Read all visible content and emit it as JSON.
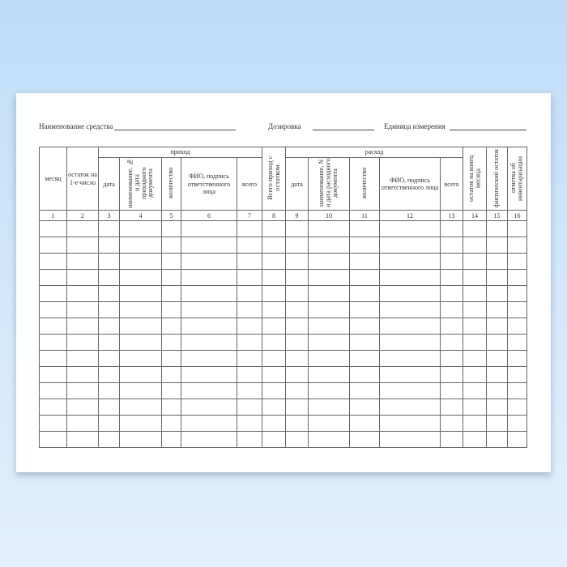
{
  "form": {
    "fields": {
      "name_label": "Наименование средства",
      "dosage_label": "Дозировка",
      "unit_label": "Единица измерения"
    },
    "table": {
      "headers": {
        "month": "месяц",
        "balance_start": "остаток на 1-е число",
        "income_group": "приход",
        "income_date": "дата",
        "income_doc": "наименование, № и дата приходного документа",
        "income_qty": "количество",
        "income_person": "ФИО, подпись ответственного лица",
        "income_total": "всего",
        "total_with_balance": "Всего приход с остатком",
        "expense_group": "расход",
        "expense_date": "дата",
        "expense_doc": "наименование, N и дата расходного документа",
        "expense_qty": "количество",
        "expense_person": "ФИО, подпись ответственного лица",
        "expense_total": "всего",
        "balance_end": "остаток на конец месяца",
        "actual_balance": "фактический остаток",
        "inventory_note": "отметка об инвентаризации"
      },
      "column_numbers": [
        "1",
        "2",
        "3",
        "4",
        "5",
        "6",
        "7",
        "8",
        "9",
        "10",
        "11",
        "12",
        "13",
        "14",
        "15",
        "16"
      ],
      "empty_rows": 14
    }
  }
}
